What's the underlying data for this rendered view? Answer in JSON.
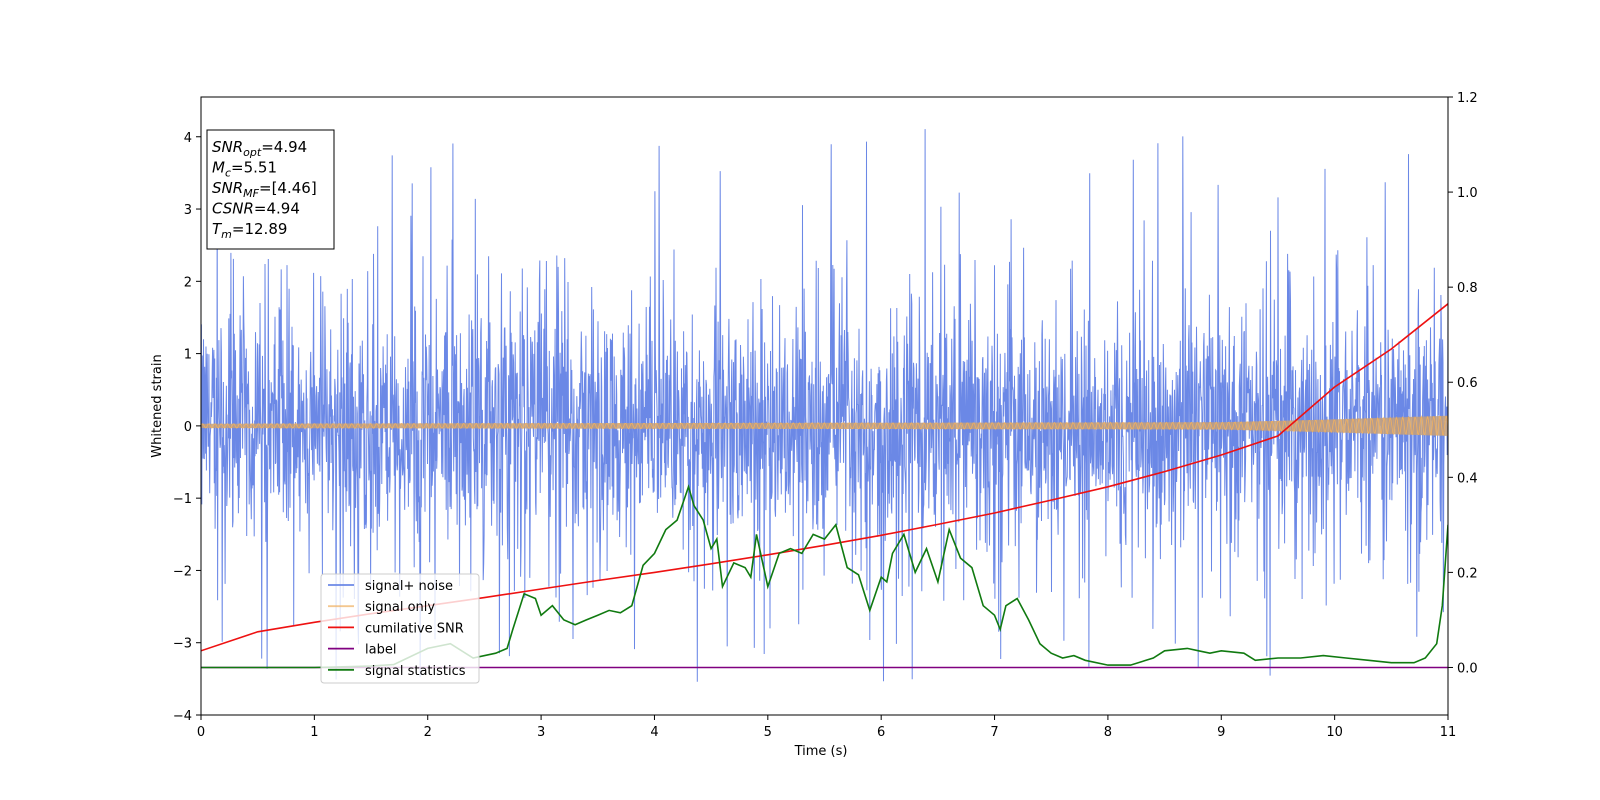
{
  "chart_data": {
    "type": "line",
    "x_axis": {
      "label": "Time (s)",
      "range": [
        0,
        11
      ],
      "ticks": [
        0,
        1,
        2,
        3,
        4,
        5,
        6,
        7,
        8,
        9,
        10,
        11
      ]
    },
    "y_axis_left": {
      "label": "Whitened strain",
      "range": [
        -4,
        4.55
      ],
      "ticks": [
        -4,
        -3,
        -2,
        -1,
        0,
        1,
        2,
        3,
        4
      ]
    },
    "y_axis_right": {
      "label": "",
      "range": [
        -0.1,
        1.2
      ],
      "ticks": [
        0.0,
        0.2,
        0.4,
        0.6,
        0.8,
        1.0,
        1.2
      ],
      "tick_labels": [
        "0.0",
        "0.2",
        "0.4",
        "0.6",
        "0.8",
        "1.0",
        "1.2"
      ]
    },
    "info_box": {
      "lines": [
        {
          "main": "SNR",
          "sub": "opt",
          "rest": "=4.94"
        },
        {
          "main": "M",
          "sub": "c",
          "rest": "=5.51"
        },
        {
          "main": "SNR",
          "sub": "MF",
          "rest": "=[4.46]"
        },
        {
          "main": "CSNR",
          "sub": "",
          "rest": "=4.94"
        },
        {
          "main": "T",
          "sub": "m",
          "rest": "=12.89"
        }
      ]
    },
    "legend": {
      "position": "lower-left",
      "entries": [
        "signal+ noise",
        "signal only",
        "cumilative SNR",
        "label",
        "signal statistics"
      ]
    },
    "colors": {
      "noise": "#6b88e6",
      "signal": "#f0b060",
      "cumulative_snr": "#ee1111",
      "label": "#800080",
      "statistics": "#107a10"
    },
    "series": [
      {
        "name": "signal+ noise",
        "axis": "left",
        "description_range": {
          "typical_min": -2.0,
          "typical_max": 2.0,
          "peak_max": 4.15,
          "peak_min": -3.62
        }
      },
      {
        "name": "signal only",
        "axis": "left",
        "envelope": {
          "x": [
            0,
            9,
            10,
            11
          ],
          "amplitude": [
            0.03,
            0.05,
            0.09,
            0.14
          ]
        }
      },
      {
        "name": "cumilative SNR",
        "axis": "right",
        "x": [
          0,
          0.5,
          1,
          1.5,
          2,
          2.5,
          3,
          3.5,
          4,
          4.5,
          5,
          5.5,
          6,
          6.5,
          7,
          7.5,
          8,
          8.5,
          9,
          9.5,
          10,
          10.5,
          11
        ],
        "y": [
          0.035,
          0.075,
          0.095,
          0.113,
          0.13,
          0.147,
          0.165,
          0.183,
          0.2,
          0.218,
          0.237,
          0.257,
          0.278,
          0.301,
          0.325,
          0.352,
          0.38,
          0.412,
          0.447,
          0.487,
          0.59,
          0.67,
          0.765
        ]
      },
      {
        "name": "label",
        "axis": "right",
        "x": [
          0,
          11
        ],
        "y": [
          0.0,
          0.0
        ]
      },
      {
        "name": "signal statistics",
        "axis": "right",
        "x": [
          0.0,
          0.5,
          1.0,
          1.5,
          1.7,
          2.0,
          2.2,
          2.4,
          2.6,
          2.7,
          2.75,
          2.85,
          2.95,
          3.0,
          3.1,
          3.2,
          3.3,
          3.4,
          3.5,
          3.6,
          3.7,
          3.8,
          3.9,
          4.0,
          4.1,
          4.2,
          4.3,
          4.35,
          4.43,
          4.5,
          4.55,
          4.6,
          4.7,
          4.8,
          4.85,
          4.9,
          5.0,
          5.1,
          5.2,
          5.3,
          5.4,
          5.5,
          5.6,
          5.7,
          5.8,
          5.9,
          6.0,
          6.05,
          6.1,
          6.2,
          6.3,
          6.4,
          6.5,
          6.6,
          6.7,
          6.8,
          6.9,
          7.0,
          7.05,
          7.1,
          7.2,
          7.3,
          7.4,
          7.5,
          7.6,
          7.7,
          7.8,
          8.0,
          8.2,
          8.4,
          8.5,
          8.7,
          8.8,
          8.9,
          9.0,
          9.2,
          9.3,
          9.5,
          9.7,
          9.9,
          10.1,
          10.3,
          10.5,
          10.7,
          10.8,
          10.9,
          10.95,
          11.0
        ],
        "y": [
          0.0,
          0.0,
          0.0,
          0.003,
          0.006,
          0.04,
          0.05,
          0.02,
          0.03,
          0.04,
          0.08,
          0.155,
          0.145,
          0.11,
          0.13,
          0.1,
          0.09,
          0.1,
          0.11,
          0.12,
          0.115,
          0.13,
          0.215,
          0.24,
          0.29,
          0.31,
          0.38,
          0.34,
          0.31,
          0.25,
          0.27,
          0.17,
          0.22,
          0.21,
          0.19,
          0.28,
          0.17,
          0.24,
          0.25,
          0.24,
          0.28,
          0.27,
          0.3,
          0.21,
          0.195,
          0.12,
          0.19,
          0.18,
          0.24,
          0.28,
          0.2,
          0.25,
          0.18,
          0.29,
          0.23,
          0.21,
          0.13,
          0.11,
          0.08,
          0.13,
          0.145,
          0.1,
          0.05,
          0.03,
          0.02,
          0.025,
          0.015,
          0.005,
          0.005,
          0.02,
          0.035,
          0.04,
          0.035,
          0.03,
          0.035,
          0.03,
          0.015,
          0.02,
          0.02,
          0.025,
          0.02,
          0.015,
          0.01,
          0.01,
          0.02,
          0.05,
          0.13,
          0.3
        ]
      }
    ]
  }
}
